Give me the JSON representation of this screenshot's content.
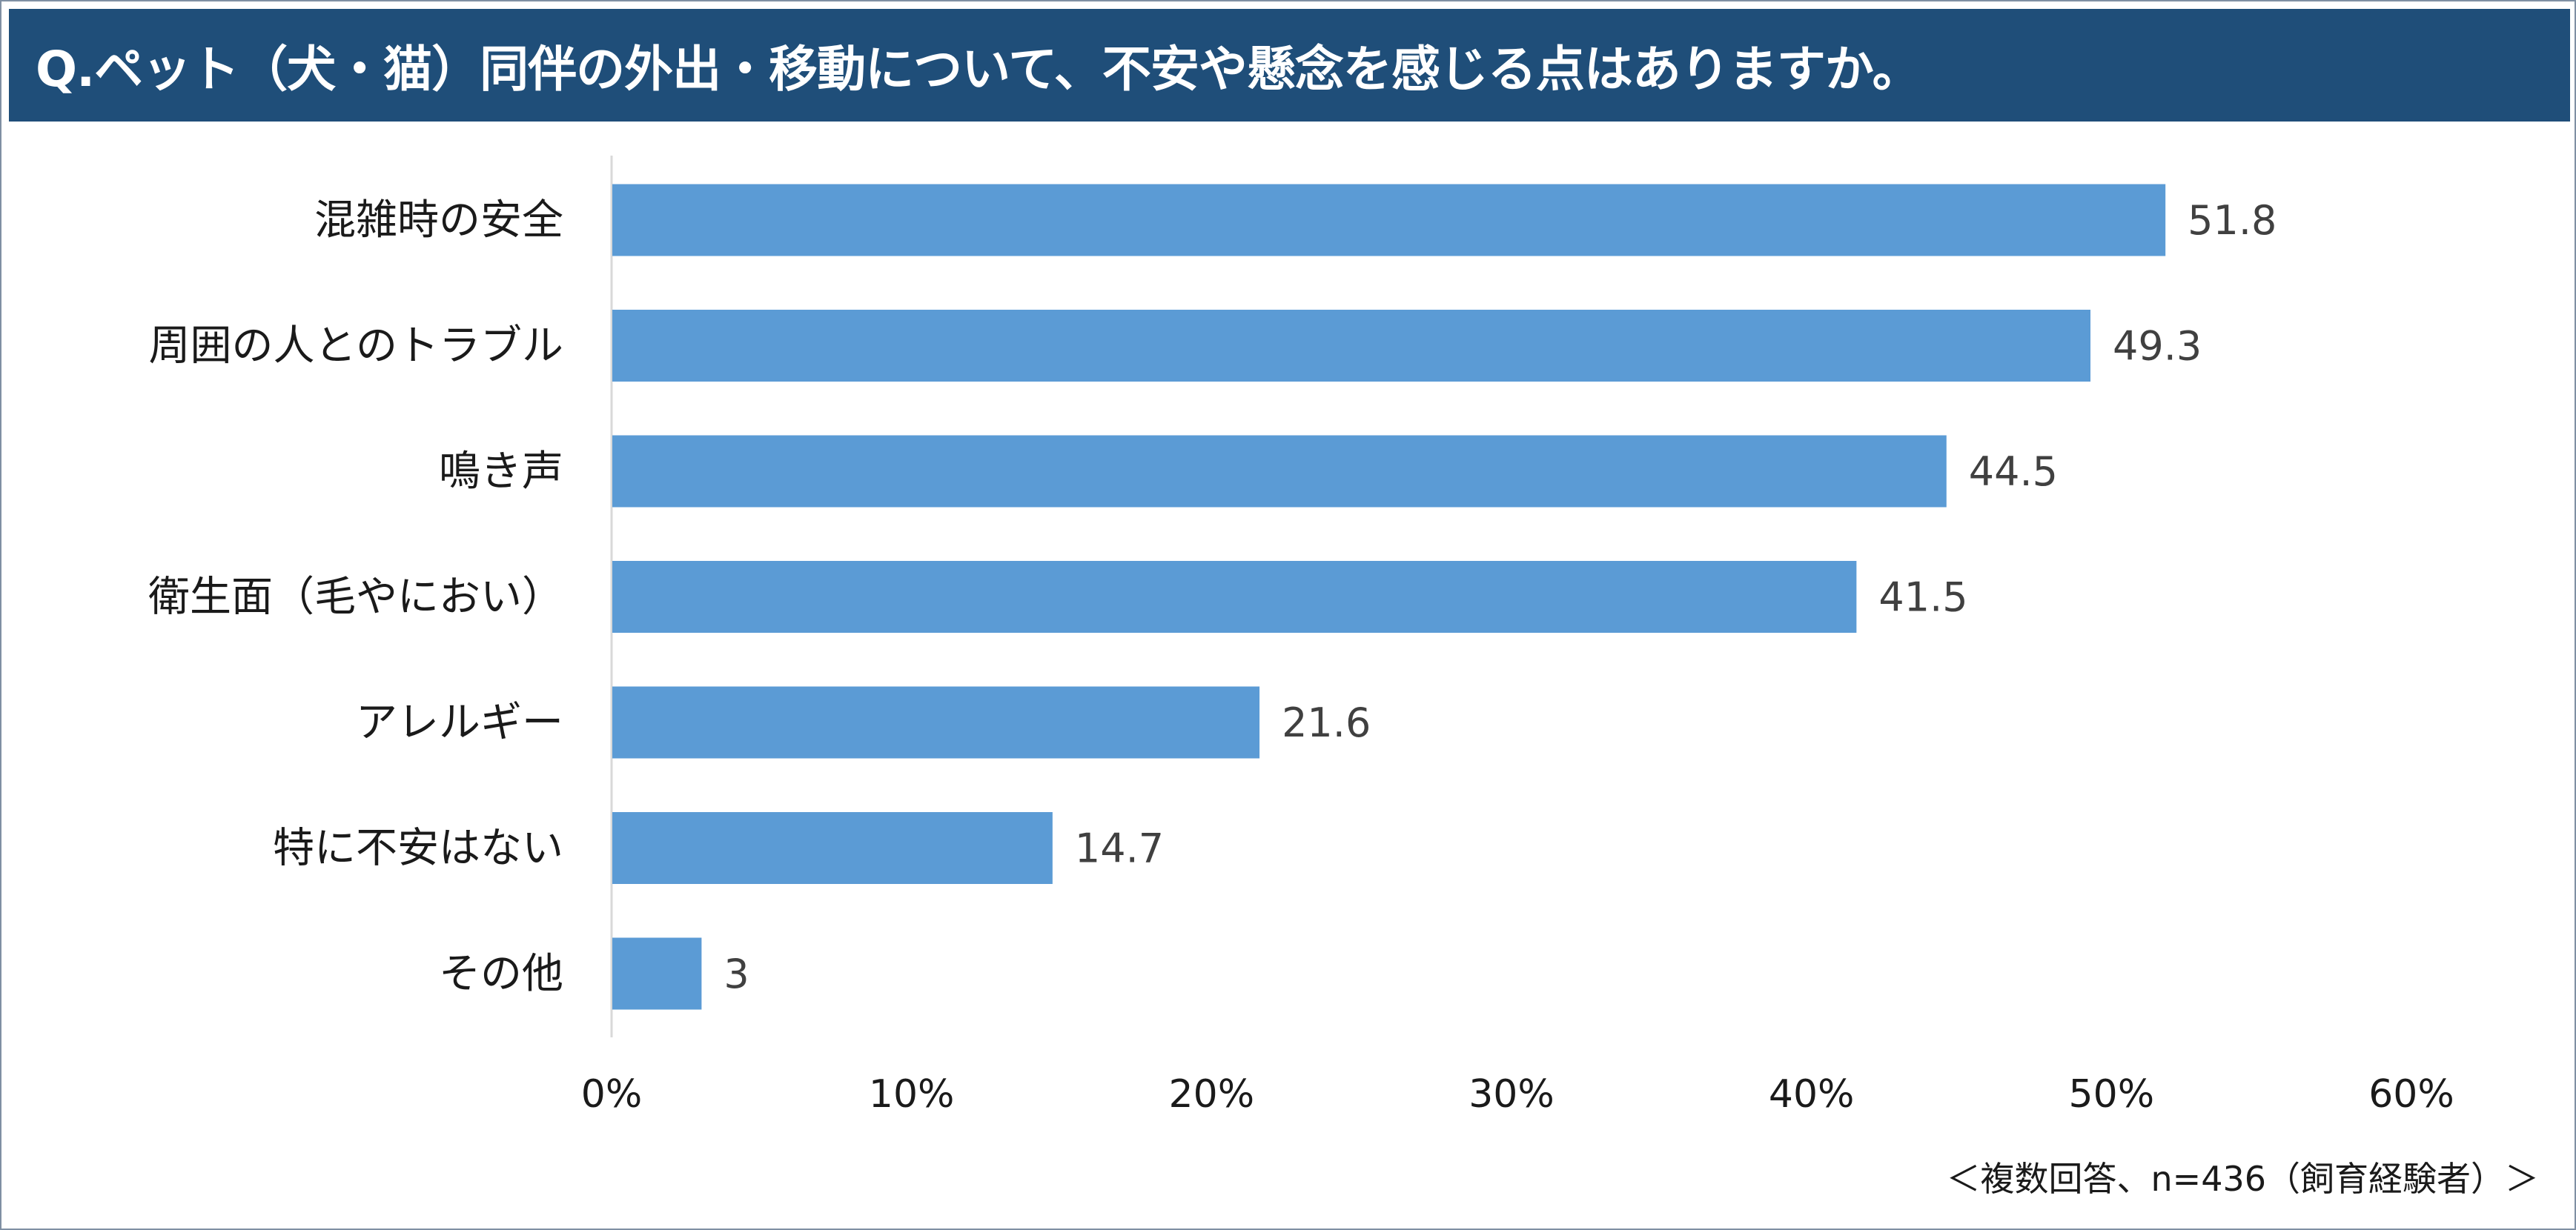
{
  "header": {
    "title": "Q.ペット（犬・猫）同伴の外出・移動について、不安や懸念を感じる点はありますか。"
  },
  "footnote": "＜複数回答、n=436（飼育経験者）＞",
  "colors": {
    "header_bg": "#1f4e79",
    "bar": "#5b9bd5",
    "axis": "#d9d9d9"
  },
  "chart_data": {
    "type": "bar",
    "orientation": "horizontal",
    "categories": [
      "混雑時の安全",
      "周囲の人とのトラブル",
      "鳴き声",
      "衛生面（毛やにおい）",
      "アレルギー",
      "特に不安はない",
      "その他"
    ],
    "values": [
      51.8,
      49.3,
      44.5,
      41.5,
      21.6,
      14.7,
      3
    ],
    "value_labels": [
      "51.8",
      "49.3",
      "44.5",
      "41.5",
      "21.6",
      "14.7",
      "3"
    ],
    "xlim": [
      0,
      60
    ],
    "xticks": [
      0,
      10,
      20,
      30,
      40,
      50,
      60
    ],
    "xtick_labels": [
      "0%",
      "10%",
      "20%",
      "30%",
      "40%",
      "50%",
      "60%"
    ],
    "grid": false
  }
}
